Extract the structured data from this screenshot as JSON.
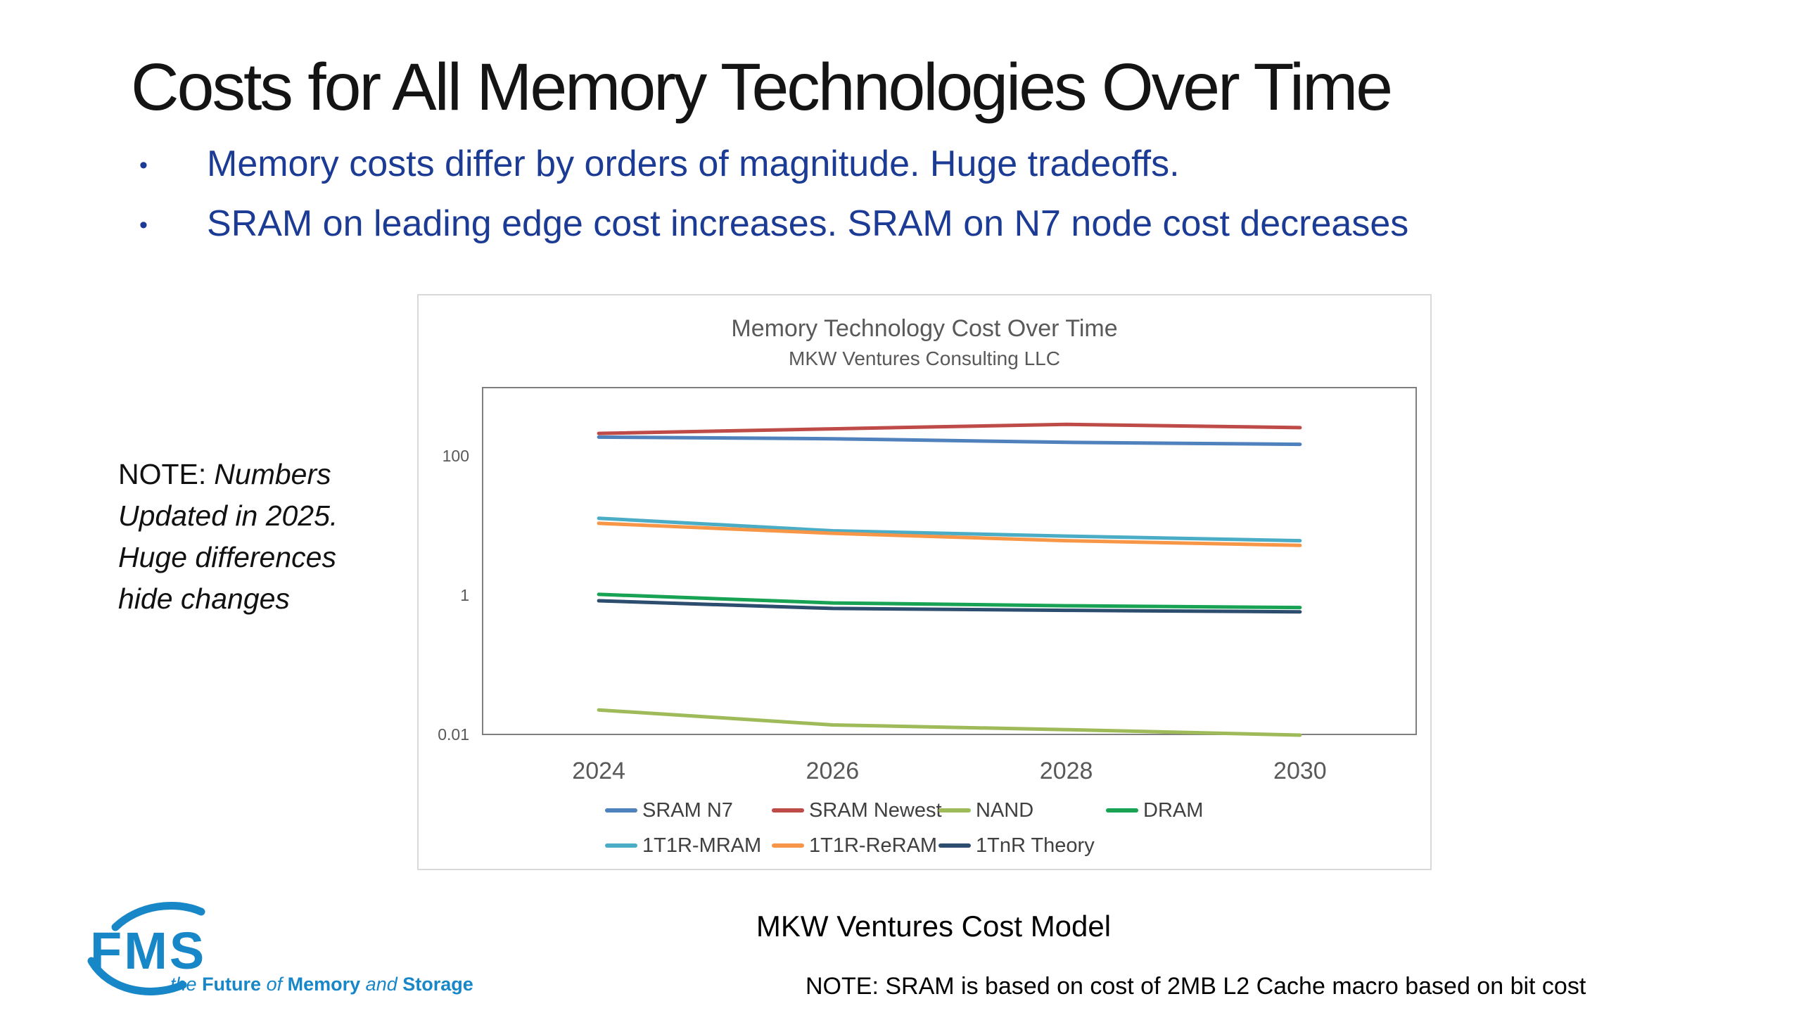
{
  "slide": {
    "title": "Costs for All Memory Technologies Over Time",
    "bullets": [
      "Memory costs differ by orders of magnitude. Huge tradeoffs.",
      "SRAM on leading edge cost increases. SRAM on N7 node cost decreases"
    ],
    "bullet_marker": "•",
    "side_note": {
      "prefix": "NOTE:",
      "lines": [
        "Numbers",
        "Updated in 2025.",
        "Huge differences",
        "hide changes"
      ]
    },
    "caption": "MKW Ventures Cost Model",
    "bottom_note": "NOTE: SRAM is based on cost of 2MB L2 Cache macro based on bit cost",
    "colors": {
      "bullet_text": "#1C3B94",
      "title_text": "#141414"
    }
  },
  "logo": {
    "text": "FMS",
    "color": "#1787C8",
    "tagline": {
      "the": "the",
      "future": "Future",
      "of": "of",
      "memory": "Memory",
      "and": "and",
      "storage": "Storage"
    }
  },
  "chart_data": {
    "type": "line",
    "title": "Memory Technology Cost Over Time",
    "subtitle": "MKW Ventures Consulting LLC",
    "categories": [
      "2024",
      "2026",
      "2028",
      "2030"
    ],
    "x_axis_type": "category",
    "y_scale": "log",
    "ylim": [
      0.01,
      1000
    ],
    "y_ticks": [
      "100",
      "1",
      "0.01"
    ],
    "grid": false,
    "legend_position": "bottom",
    "series": [
      {
        "name": "SRAM N7",
        "color": "#4F81BD",
        "values": [
          190,
          180,
          160,
          150
        ]
      },
      {
        "name": "SRAM Newest",
        "color": "#BE4B48",
        "values": [
          215,
          250,
          290,
          260
        ]
      },
      {
        "name": "NAND",
        "color": "#9FBA59",
        "values": [
          0.023,
          0.014,
          0.012,
          0.01
        ]
      },
      {
        "name": "DRAM",
        "color": "#17A353",
        "values": [
          1.05,
          0.79,
          0.72,
          0.68
        ]
      },
      {
        "name": "1T1R-MRAM",
        "color": "#4BACC6",
        "values": [
          13,
          8.6,
          7.2,
          6.2
        ]
      },
      {
        "name": "1T1R-ReRAM",
        "color": "#F79646",
        "values": [
          11,
          7.9,
          6.2,
          5.3
        ]
      },
      {
        "name": "1TnR Theory",
        "color": "#2C4D6E",
        "values": [
          0.85,
          0.66,
          0.62,
          0.59
        ]
      }
    ],
    "legend_rows": [
      [
        0,
        1,
        2,
        3
      ],
      [
        4,
        5,
        6
      ]
    ]
  }
}
